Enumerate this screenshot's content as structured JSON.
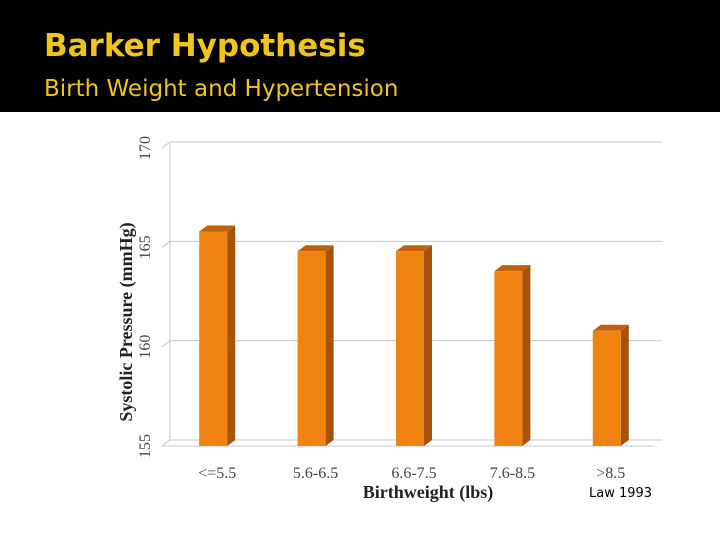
{
  "slide": {
    "title": "Barker Hypothesis",
    "subtitle": "Birth Weight and Hypertension",
    "source_note": "Law 1993"
  },
  "colors": {
    "title": "#f0c419",
    "bar_front": "#f0820f",
    "bar_top": "#c2600a",
    "bar_side": "#a5520a",
    "gridline": "#c8c8c8"
  },
  "chart_data": {
    "type": "bar",
    "categories": [
      "<=5.5",
      "5.6-6.5",
      "6.6-7.5",
      "7.6-8.5",
      ">8.5"
    ],
    "values": [
      165.8,
      164.8,
      164.8,
      163.8,
      160.8
    ],
    "xlabel": "Birthweight (lbs)",
    "ylabel": "Systolic Pressure (mmHg)",
    "ylim": [
      155,
      170
    ],
    "yticks": [
      155,
      160,
      165,
      170
    ],
    "grid": true,
    "style": "3d-column"
  }
}
